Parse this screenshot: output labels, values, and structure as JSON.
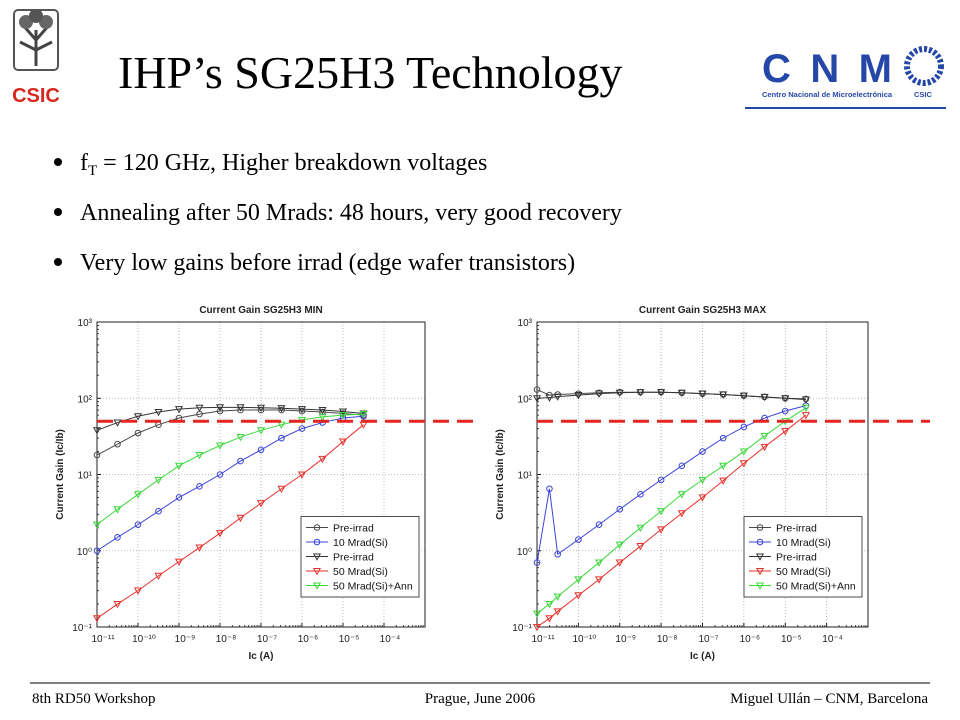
{
  "header": {
    "title": "IHP’s SG25H3 Technology",
    "left_logo": "CSIC",
    "right_logo": "CNM",
    "right_logo_sub": "Centro Nacional de Microelectrónica",
    "right_logo_org": "CSIC"
  },
  "bullets": [
    {
      "main": "f",
      "sub": "T",
      "rest": " = 120 GHz, Higher breakdown voltages"
    },
    {
      "main": "Annealing after 50 Mrads: 48 hours, very good recovery"
    },
    {
      "main": "Very low gains before irrad (edge wafer transistors)"
    }
  ],
  "footer": {
    "left": "8th RD50 Workshop",
    "center": "Prague, June 2006",
    "right": "Miguel Ullán – CNM, Barcelona"
  },
  "chart_data": [
    {
      "type": "line",
      "title": "Current Gain SG25H3 MIN",
      "x_label": "Ic (A)",
      "y_label": "Current Gain (Ic/Ib)",
      "log_x": true,
      "log_y": true,
      "grid": true,
      "legend": "lower right",
      "xlim": [
        1e-11,
        0.001
      ],
      "xticks": [
        {
          "value": 1e-11,
          "label": "10⁻¹¹"
        },
        {
          "value": 1e-10,
          "label": "10⁻¹⁰"
        },
        {
          "value": 1e-09,
          "label": "10⁻⁹"
        },
        {
          "value": 1e-08,
          "label": "10⁻⁸"
        },
        {
          "value": 1e-07,
          "label": "10⁻⁷"
        },
        {
          "value": 1e-06,
          "label": "10⁻⁶"
        },
        {
          "value": 1e-05,
          "label": "10⁻⁵"
        },
        {
          "value": 0.0001,
          "label": "10⁻⁴"
        }
      ],
      "ylim": [
        0.1,
        1000
      ],
      "yticks": [
        {
          "value": 0.1,
          "label": "10⁻¹"
        },
        {
          "value": 1,
          "label": "10⁰"
        },
        {
          "value": 10,
          "label": "10¹"
        },
        {
          "value": 100,
          "label": "10²"
        },
        {
          "value": 1000,
          "label": "10³"
        }
      ],
      "reference_line": {
        "value": 50,
        "color": "#e3261f"
      },
      "x": [
        1e-11,
        3.16e-11,
        1e-10,
        3.16e-10,
        1e-09,
        3.16e-09,
        1e-08,
        3.16e-08,
        1e-07,
        3.16e-07,
        1e-06,
        3.16e-06,
        1e-05,
        3.16e-05
      ],
      "series": [
        {
          "name": "Pre-irrad",
          "color": "#4a4a4a",
          "marker": "circle",
          "values": [
            18,
            25,
            35,
            45,
            55,
            62,
            68,
            70,
            70,
            70,
            68,
            66,
            63,
            60
          ]
        },
        {
          "name": "10 Mrad(Si)",
          "color": "#3b44d8",
          "marker": "circle",
          "values": [
            1,
            1.5,
            2.2,
            3.3,
            5,
            7,
            10,
            15,
            21,
            30,
            40,
            48,
            55,
            58
          ]
        },
        {
          "name": "Pre-irrad",
          "color": "#333333",
          "marker": "triangle-down",
          "values": [
            38,
            48,
            58,
            66,
            72,
            75,
            76,
            76,
            75,
            74,
            72,
            70,
            67,
            63
          ]
        },
        {
          "name": "50 Mrad(Si)",
          "color": "#e8302a",
          "marker": "triangle-down",
          "values": [
            0.13,
            0.2,
            0.3,
            0.47,
            0.72,
            1.1,
            1.7,
            2.7,
            4.2,
            6.5,
            10,
            16,
            27,
            45
          ]
        },
        {
          "name": "50 Mrad(Si)+Ann",
          "color": "#3ad83a",
          "marker": "triangle-down",
          "values": [
            2.2,
            3.5,
            5.5,
            8.5,
            13,
            18,
            24,
            31,
            38,
            45,
            52,
            57,
            60,
            62
          ]
        }
      ]
    },
    {
      "type": "line",
      "title": "Current Gain SG25H3 MAX",
      "x_label": "Ic (A)",
      "y_label": "Current Gain (Ic/Ib)",
      "log_x": true,
      "log_y": true,
      "grid": true,
      "legend": "lower right",
      "xlim": [
        1e-11,
        0.001
      ],
      "xticks": [
        {
          "value": 1e-11,
          "label": "10⁻¹¹"
        },
        {
          "value": 1e-10,
          "label": "10⁻¹⁰"
        },
        {
          "value": 1e-09,
          "label": "10⁻⁹"
        },
        {
          "value": 1e-08,
          "label": "10⁻⁸"
        },
        {
          "value": 1e-07,
          "label": "10⁻⁷"
        },
        {
          "value": 1e-06,
          "label": "10⁻⁶"
        },
        {
          "value": 1e-05,
          "label": "10⁻⁵"
        },
        {
          "value": 0.0001,
          "label": "10⁻⁴"
        }
      ],
      "ylim": [
        0.1,
        1000
      ],
      "yticks": [
        {
          "value": 0.1,
          "label": "10⁻¹"
        },
        {
          "value": 1,
          "label": "10⁰"
        },
        {
          "value": 10,
          "label": "10¹"
        },
        {
          "value": 100,
          "label": "10²"
        },
        {
          "value": 1000,
          "label": "10³"
        }
      ],
      "reference_line": {
        "value": 50,
        "color": "#e3261f"
      },
      "x": [
        1e-11,
        2e-11,
        3.16e-11,
        1e-10,
        3.16e-10,
        1e-09,
        3.16e-09,
        1e-08,
        3.16e-08,
        1e-07,
        3.16e-07,
        1e-06,
        3.16e-06,
        1e-05,
        3.16e-05
      ],
      "series": [
        {
          "name": "Pre-irrad",
          "color": "#4a4a4a",
          "marker": "circle",
          "values": [
            130,
            110,
            112,
            115,
            118,
            120,
            120,
            120,
            118,
            115,
            112,
            108,
            104,
            100,
            98
          ]
        },
        {
          "name": "10 Mrad(Si)",
          "color": "#3b44d8",
          "marker": "circle",
          "values": [
            0.7,
            6.5,
            0.9,
            1.4,
            2.2,
            3.5,
            5.5,
            8.5,
            13,
            20,
            30,
            42,
            55,
            68,
            80
          ]
        },
        {
          "name": "Pre-irrad",
          "color": "#333333",
          "marker": "triangle-down",
          "values": [
            100,
            102,
            105,
            110,
            115,
            118,
            120,
            120,
            118,
            115,
            112,
            108,
            104,
            100,
            96
          ]
        },
        {
          "name": "50 Mrad(Si)",
          "color": "#e8302a",
          "marker": "triangle-down",
          "values": [
            0.1,
            0.13,
            0.16,
            0.26,
            0.42,
            0.7,
            1.15,
            1.9,
            3.1,
            5,
            8.3,
            14,
            23,
            37,
            60
          ]
        },
        {
          "name": "50 Mrad(Si)+Ann",
          "color": "#3ad83a",
          "marker": "triangle-down",
          "values": [
            0.15,
            0.2,
            0.25,
            0.42,
            0.7,
            1.2,
            2,
            3.3,
            5.5,
            8.5,
            13,
            20,
            32,
            50,
            75
          ]
        }
      ]
    }
  ]
}
